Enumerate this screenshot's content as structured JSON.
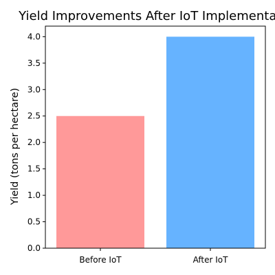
{
  "chart_data": {
    "type": "bar",
    "title": "Yield Improvements After IoT Implementation",
    "xlabel": "",
    "ylabel": "Yield (tons per hectare)",
    "categories": [
      "Before IoT",
      "After IoT"
    ],
    "values": [
      2.5,
      4.0
    ],
    "colors": [
      "#ff9999",
      "#66b3ff"
    ],
    "ylim": [
      0,
      4.2
    ],
    "yticks": [
      0.0,
      0.5,
      1.0,
      1.5,
      2.0,
      2.5,
      3.0,
      3.5,
      4.0
    ],
    "ytick_labels": [
      "0.0",
      "0.5",
      "1.0",
      "1.5",
      "2.0",
      "2.5",
      "3.0",
      "3.5",
      "4.0"
    ],
    "grid": false,
    "legend": "none"
  }
}
